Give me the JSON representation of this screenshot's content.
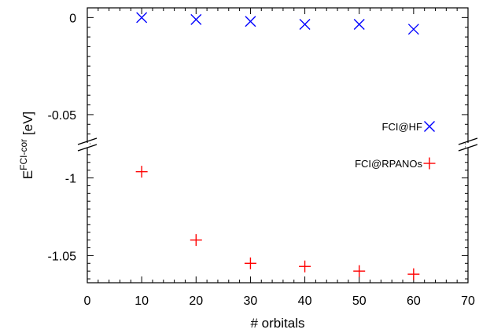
{
  "chart_data": {
    "type": "scatter",
    "xlabel": "# orbitals",
    "ylabel": {
      "base": "E",
      "superscript": "FCI-cor",
      "unit": " [eV]"
    },
    "xlim": [
      0,
      70
    ],
    "x_ticks": [
      "0",
      "10",
      "20",
      "30",
      "40",
      "50",
      "60",
      "70"
    ],
    "y_axis_break": true,
    "y_upper_range": [
      -0.065,
      0.005
    ],
    "y_lower_range": [
      -1.0675,
      -0.98
    ],
    "y_ticks_upper": [
      "0",
      "-0.05"
    ],
    "y_ticks_lower": [
      "-1",
      "-1.05"
    ],
    "series": [
      {
        "name": "FCI@HF",
        "marker": "x",
        "color": "#0000ff",
        "x": [
          10,
          20,
          30,
          40,
          50,
          60
        ],
        "y": [
          0.0,
          -0.001,
          -0.002,
          -0.0035,
          -0.0035,
          -0.006
        ]
      },
      {
        "name": "FCI@RPANOs",
        "marker": "+",
        "color": "#ff0000",
        "x": [
          10,
          20,
          30,
          40,
          50,
          60
        ],
        "y": [
          -0.996,
          -1.04,
          -1.055,
          -1.057,
          -1.06,
          -1.062
        ]
      }
    ],
    "legend_position": "right-middle",
    "grid": false
  }
}
